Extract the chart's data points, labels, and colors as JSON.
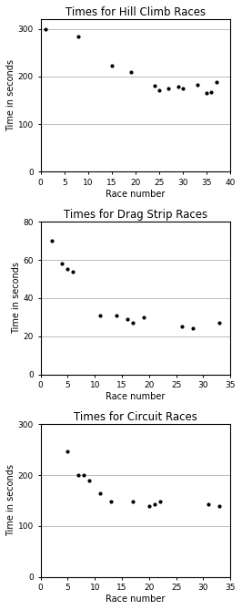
{
  "hill_climb": {
    "title": "Times for Hill Climb Races",
    "xlabel": "Race number",
    "ylabel": "Time in seconds",
    "x": [
      1,
      8,
      15,
      19,
      24,
      25,
      27,
      29,
      30,
      33,
      35,
      36,
      37
    ],
    "y": [
      300,
      284,
      222,
      210,
      181,
      172,
      175,
      178,
      175,
      183,
      165,
      168,
      188
    ],
    "xlim": [
      0,
      40
    ],
    "ylim": [
      0,
      320
    ],
    "xticks": [
      0,
      5,
      10,
      15,
      20,
      25,
      30,
      35,
      40
    ],
    "yticks": [
      0,
      100,
      200,
      300
    ]
  },
  "drag_strip": {
    "title": "Times for Drag Strip Races",
    "xlabel": "Race number",
    "ylabel": "Time in seconds",
    "x": [
      2,
      4,
      5,
      6,
      11,
      14,
      16,
      17,
      19,
      26,
      28,
      33
    ],
    "y": [
      70,
      58,
      55,
      54,
      31,
      31,
      29,
      27,
      30,
      25,
      24,
      27
    ],
    "xlim": [
      0,
      35
    ],
    "ylim": [
      0,
      80
    ],
    "xticks": [
      0,
      5,
      10,
      15,
      20,
      25,
      30,
      35
    ],
    "yticks": [
      0,
      20,
      40,
      60,
      80
    ]
  },
  "circuit": {
    "title": "Times for Circuit Races",
    "xlabel": "Race number",
    "ylabel": "Time in seconds",
    "x": [
      5,
      7,
      8,
      9,
      11,
      13,
      17,
      20,
      21,
      22,
      31,
      33
    ],
    "y": [
      247,
      200,
      200,
      190,
      165,
      148,
      148,
      140,
      143,
      148,
      143,
      140
    ],
    "xlim": [
      0,
      35
    ],
    "ylim": [
      0,
      300
    ],
    "xticks": [
      0,
      5,
      10,
      15,
      20,
      25,
      30,
      35
    ],
    "yticks": [
      0,
      100,
      200,
      300
    ]
  },
  "marker": ".",
  "markersize": 4,
  "markercolor": "black",
  "grid_color": "#bbbbbb",
  "title_fontsize": 8.5,
  "label_fontsize": 7,
  "tick_fontsize": 6.5
}
